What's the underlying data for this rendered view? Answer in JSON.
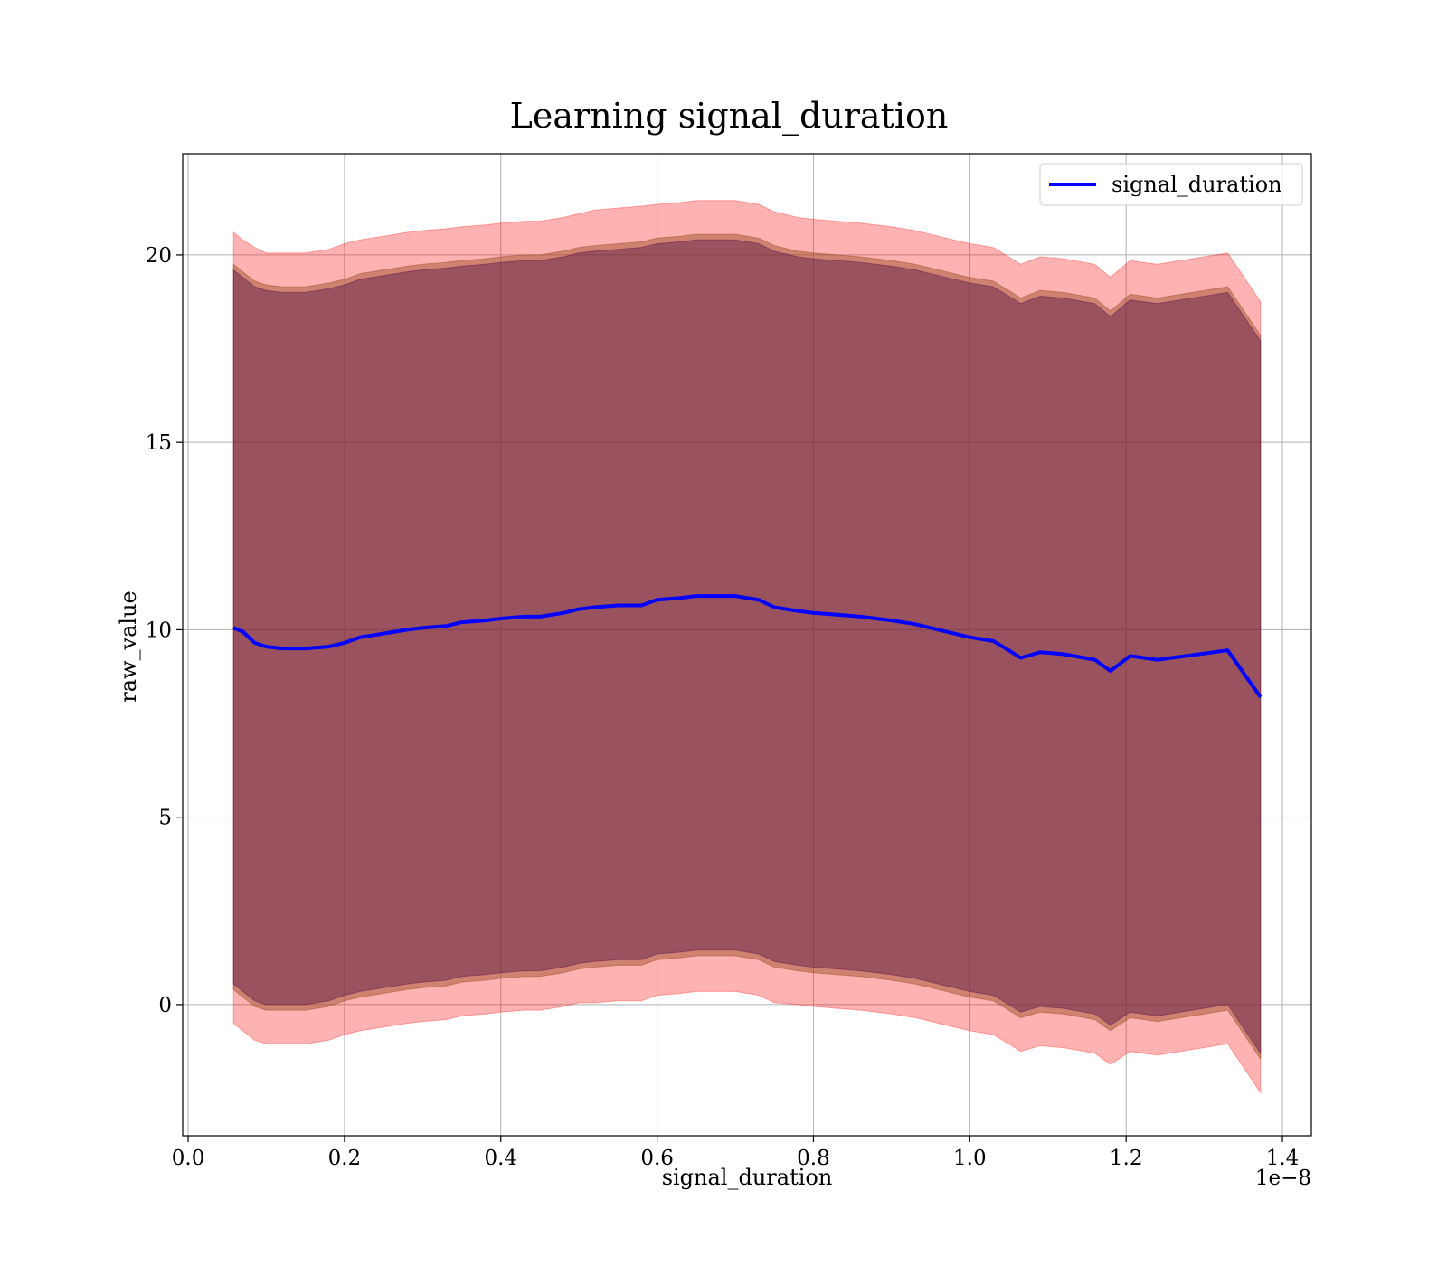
{
  "chart_data": {
    "type": "line",
    "title": "Learning signal_duration",
    "xlabel": "signal_duration",
    "ylabel": "raw_value",
    "x_offset_text": "1e−8",
    "x_ticks": [
      0.0,
      0.2,
      0.4,
      0.6,
      0.8,
      1.0,
      1.2,
      1.4
    ],
    "x_tick_labels": [
      "0.0",
      "0.2",
      "0.4",
      "0.6",
      "0.8",
      "1.0",
      "1.2",
      "1.4"
    ],
    "y_ticks": [
      0,
      5,
      10,
      15,
      20
    ],
    "y_tick_labels": [
      "0",
      "5",
      "10",
      "15",
      "20"
    ],
    "xlim": [
      -0.007,
      1.437
    ],
    "ylim": [
      -3.5,
      22.7
    ],
    "grid": true,
    "legend_position": "top-right",
    "series": [
      {
        "name": "signal_duration",
        "color": "#0000ff",
        "x": [
          0.058,
          0.07,
          0.085,
          0.1,
          0.12,
          0.15,
          0.18,
          0.2,
          0.22,
          0.25,
          0.28,
          0.3,
          0.33,
          0.35,
          0.38,
          0.4,
          0.43,
          0.45,
          0.48,
          0.5,
          0.52,
          0.55,
          0.58,
          0.6,
          0.63,
          0.65,
          0.68,
          0.7,
          0.73,
          0.75,
          0.78,
          0.8,
          0.83,
          0.86,
          0.9,
          0.93,
          0.96,
          1.0,
          1.03,
          1.05,
          1.065,
          1.09,
          1.12,
          1.16,
          1.18,
          1.205,
          1.24,
          1.33,
          1.372
        ],
        "values": [
          10.05,
          9.95,
          9.65,
          9.55,
          9.5,
          9.5,
          9.55,
          9.65,
          9.8,
          9.9,
          10.0,
          10.05,
          10.1,
          10.2,
          10.25,
          10.3,
          10.35,
          10.35,
          10.45,
          10.55,
          10.6,
          10.65,
          10.65,
          10.8,
          10.85,
          10.9,
          10.9,
          10.9,
          10.8,
          10.6,
          10.5,
          10.45,
          10.4,
          10.35,
          10.25,
          10.15,
          10.0,
          9.8,
          9.7,
          9.45,
          9.25,
          9.4,
          9.35,
          9.2,
          8.9,
          9.3,
          9.2,
          9.45,
          8.2
        ]
      }
    ],
    "bands": [
      {
        "color": "#ff0000",
        "opacity": 0.3,
        "upper": [
          20.6,
          20.4,
          20.2,
          20.05,
          20.05,
          20.05,
          20.15,
          20.3,
          20.4,
          20.5,
          20.6,
          20.65,
          20.7,
          20.75,
          20.8,
          20.85,
          20.9,
          20.9,
          21.0,
          21.1,
          21.2,
          21.25,
          21.3,
          21.35,
          21.4,
          21.45,
          21.45,
          21.45,
          21.35,
          21.15,
          21.0,
          20.95,
          20.9,
          20.85,
          20.75,
          20.65,
          20.5,
          20.3,
          20.2,
          19.95,
          19.75,
          19.95,
          19.9,
          19.75,
          19.4,
          19.85,
          19.75,
          20.05,
          18.75
        ],
        "lower": [
          -0.5,
          -0.7,
          -0.95,
          -1.05,
          -1.05,
          -1.05,
          -0.95,
          -0.8,
          -0.7,
          -0.6,
          -0.5,
          -0.45,
          -0.4,
          -0.3,
          -0.25,
          -0.2,
          -0.15,
          -0.15,
          -0.05,
          0.05,
          0.05,
          0.1,
          0.1,
          0.25,
          0.3,
          0.35,
          0.35,
          0.35,
          0.25,
          0.05,
          0.0,
          -0.05,
          -0.1,
          -0.15,
          -0.25,
          -0.35,
          -0.5,
          -0.7,
          -0.8,
          -1.05,
          -1.25,
          -1.1,
          -1.15,
          -1.3,
          -1.6,
          -1.25,
          -1.35,
          -1.05,
          -2.35
        ]
      },
      {
        "color": "#a0522d",
        "opacity": 0.5,
        "upper": [
          19.75,
          19.55,
          19.3,
          19.2,
          19.15,
          19.15,
          19.25,
          19.35,
          19.5,
          19.6,
          19.7,
          19.75,
          19.8,
          19.85,
          19.9,
          19.95,
          20.0,
          20.0,
          20.1,
          20.2,
          20.25,
          20.3,
          20.35,
          20.45,
          20.5,
          20.55,
          20.55,
          20.55,
          20.45,
          20.25,
          20.1,
          20.05,
          20.0,
          19.95,
          19.85,
          19.75,
          19.6,
          19.4,
          19.3,
          19.05,
          18.85,
          19.05,
          19.0,
          18.85,
          18.5,
          18.95,
          18.85,
          19.15,
          17.85
        ],
        "lower": [
          0.4,
          0.2,
          -0.05,
          -0.15,
          -0.15,
          -0.15,
          -0.05,
          0.1,
          0.2,
          0.3,
          0.4,
          0.45,
          0.5,
          0.6,
          0.65,
          0.7,
          0.75,
          0.75,
          0.85,
          0.95,
          1.0,
          1.05,
          1.05,
          1.2,
          1.25,
          1.3,
          1.3,
          1.3,
          1.2,
          1.0,
          0.9,
          0.85,
          0.8,
          0.75,
          0.65,
          0.55,
          0.4,
          0.2,
          0.1,
          -0.15,
          -0.35,
          -0.2,
          -0.25,
          -0.4,
          -0.7,
          -0.35,
          -0.45,
          -0.15,
          -1.45
        ]
      },
      {
        "color": "#4b0a46",
        "opacity": 0.4,
        "upper": [
          19.6,
          19.4,
          19.15,
          19.05,
          19.0,
          19.0,
          19.1,
          19.2,
          19.35,
          19.45,
          19.55,
          19.6,
          19.65,
          19.7,
          19.75,
          19.8,
          19.85,
          19.85,
          19.95,
          20.05,
          20.1,
          20.15,
          20.2,
          20.3,
          20.35,
          20.4,
          20.4,
          20.4,
          20.3,
          20.1,
          19.95,
          19.9,
          19.85,
          19.8,
          19.7,
          19.6,
          19.45,
          19.25,
          19.15,
          18.9,
          18.7,
          18.9,
          18.85,
          18.7,
          18.35,
          18.8,
          18.7,
          19.0,
          17.7
        ],
        "lower": [
          0.55,
          0.35,
          0.1,
          0.0,
          0.0,
          0.0,
          0.1,
          0.25,
          0.35,
          0.45,
          0.55,
          0.6,
          0.65,
          0.75,
          0.8,
          0.85,
          0.9,
          0.9,
          1.0,
          1.1,
          1.15,
          1.2,
          1.2,
          1.35,
          1.4,
          1.45,
          1.45,
          1.45,
          1.35,
          1.15,
          1.05,
          1.0,
          0.95,
          0.9,
          0.8,
          0.7,
          0.55,
          0.35,
          0.25,
          0.0,
          -0.2,
          -0.05,
          -0.1,
          -0.25,
          -0.55,
          -0.2,
          -0.3,
          0.0,
          -1.3
        ]
      }
    ]
  }
}
